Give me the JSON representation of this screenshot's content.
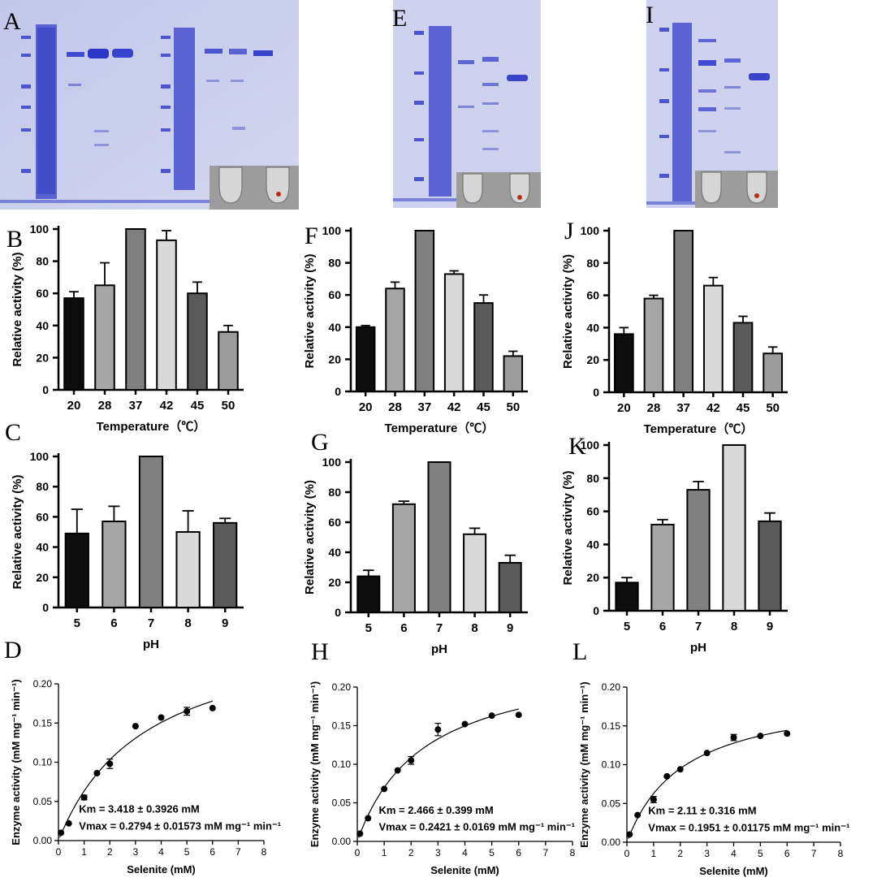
{
  "panels": {
    "A": "A",
    "B": "B",
    "C": "C",
    "D": "D",
    "E": "E",
    "F": "F",
    "G": "G",
    "H": "H",
    "I": "I",
    "J": "J",
    "K": "K",
    "L": "L"
  },
  "colors": {
    "gel_bg": "#c9cdeb",
    "band": "#3b45c8",
    "bar_fills_temp": [
      "#0d0d0d",
      "#a6a6a6",
      "#808080",
      "#d9d9d9",
      "#5a5a5a",
      "#9c9c9c"
    ],
    "bar_fills_ph": [
      "#0d0d0d",
      "#a6a6a6",
      "#808080",
      "#d9d9d9",
      "#5a5a5a"
    ]
  },
  "chart_data": [
    {
      "id": "B",
      "type": "bar",
      "categories": [
        "20",
        "28",
        "37",
        "42",
        "45",
        "50"
      ],
      "values": [
        57,
        65,
        100,
        93,
        60,
        36
      ],
      "errors": [
        4,
        14,
        0,
        6,
        7,
        4
      ],
      "ylabel": "Relative activity (%)",
      "xlabel": "Temperature（℃）",
      "ylim": [
        0,
        100
      ],
      "yticks": [
        "0",
        "20",
        "40",
        "60",
        "80",
        "100"
      ]
    },
    {
      "id": "C",
      "type": "bar",
      "categories": [
        "5",
        "6",
        "7",
        "8",
        "9"
      ],
      "values": [
        49,
        57,
        100,
        50,
        56
      ],
      "errors": [
        16,
        10,
        0,
        14,
        3
      ],
      "ylabel": "Relative activity (%)",
      "xlabel": "pH",
      "ylim": [
        0,
        100
      ],
      "yticks": [
        "0",
        "20",
        "40",
        "60",
        "80",
        "100"
      ]
    },
    {
      "id": "D",
      "type": "scatter",
      "x": [
        0.1,
        0.4,
        1,
        1.5,
        2,
        3,
        4,
        5,
        6
      ],
      "y": [
        0.01,
        0.022,
        0.055,
        0.086,
        0.098,
        0.146,
        0.157,
        0.165,
        0.169
      ],
      "errors": [
        0,
        0,
        0.003,
        0,
        0.006,
        0,
        0,
        0.005,
        0
      ],
      "fit": {
        "model": "michaelis-menten",
        "Km": 3.418,
        "Vmax": 0.2794
      },
      "ylabel": "Enzyme activity (mM mg⁻¹ min⁻¹)",
      "xlabel": "Selenite (mM)",
      "xlim": [
        0,
        8
      ],
      "ylim": [
        0,
        0.2
      ],
      "xticks": [
        "0",
        "1",
        "2",
        "3",
        "4",
        "5",
        "6",
        "7",
        "8"
      ],
      "yticks": [
        "0.00",
        "0.05",
        "0.10",
        "0.15",
        "0.20"
      ],
      "annotation_km": "Km = 3.418 ± 0.3926 mM",
      "annotation_vmax": "Vmax = 0.2794 ± 0.01573 mM mg⁻¹ min⁻¹"
    },
    {
      "id": "F",
      "type": "bar",
      "categories": [
        "20",
        "28",
        "37",
        "42",
        "45",
        "50"
      ],
      "values": [
        40,
        64,
        100,
        73,
        55,
        22
      ],
      "errors": [
        1,
        4,
        0,
        2,
        5,
        3
      ],
      "ylabel": "Relative activity (%)",
      "xlabel": "Temperature（℃）",
      "ylim": [
        0,
        100
      ],
      "yticks": [
        "0",
        "20",
        "40",
        "60",
        "80",
        "100"
      ]
    },
    {
      "id": "G",
      "type": "bar",
      "categories": [
        "5",
        "6",
        "7",
        "8",
        "9"
      ],
      "values": [
        24,
        72,
        100,
        52,
        33
      ],
      "errors": [
        4,
        2,
        0,
        4,
        5
      ],
      "ylabel": "Relative activity (%)",
      "xlabel": "pH",
      "ylim": [
        0,
        100
      ],
      "yticks": [
        "0",
        "20",
        "40",
        "60",
        "80",
        "100"
      ]
    },
    {
      "id": "H",
      "type": "scatter",
      "x": [
        0.1,
        0.4,
        1,
        1.5,
        2,
        3,
        4,
        5,
        6
      ],
      "y": [
        0.01,
        0.03,
        0.068,
        0.092,
        0.105,
        0.145,
        0.152,
        0.163,
        0.164
      ],
      "errors": [
        0,
        0,
        0,
        0,
        0.005,
        0.008,
        0,
        0,
        0
      ],
      "fit": {
        "model": "michaelis-menten",
        "Km": 2.466,
        "Vmax": 0.2421
      },
      "ylabel": "Enzyme activity (mM mg⁻¹ min⁻¹)",
      "xlabel": "Selenite (mM)",
      "xlim": [
        0,
        8
      ],
      "ylim": [
        0,
        0.2
      ],
      "xticks": [
        "0",
        "1",
        "2",
        "3",
        "4",
        "5",
        "6",
        "7",
        "8"
      ],
      "yticks": [
        "0.00",
        "0.05",
        "0.10",
        "0.15",
        "0.20"
      ],
      "annotation_km": "Km = 2.466 ± 0.399 mM",
      "annotation_vmax": "Vmax = 0.2421 ± 0.0169 mM mg⁻¹ min⁻¹"
    },
    {
      "id": "J",
      "type": "bar",
      "categories": [
        "20",
        "28",
        "37",
        "42",
        "45",
        "50"
      ],
      "values": [
        36,
        58,
        100,
        66,
        43,
        24
      ],
      "errors": [
        4,
        2,
        0,
        5,
        4,
        4
      ],
      "ylabel": "Relative activity (%)",
      "xlabel": "Temperature（℃）",
      "ylim": [
        0,
        100
      ],
      "yticks": [
        "0",
        "20",
        "40",
        "60",
        "80",
        "100"
      ]
    },
    {
      "id": "K",
      "type": "bar",
      "categories": [
        "5",
        "6",
        "7",
        "8",
        "9"
      ],
      "values": [
        17,
        52,
        73,
        100,
        54
      ],
      "errors": [
        3,
        3,
        5,
        0,
        5
      ],
      "ylabel": "Relative activity (%)",
      "xlabel": "pH",
      "ylim": [
        0,
        100
      ],
      "yticks": [
        "0",
        "20",
        "40",
        "60",
        "80",
        "100"
      ]
    },
    {
      "id": "L",
      "type": "scatter",
      "x": [
        0.1,
        0.4,
        1,
        1.5,
        2,
        3,
        4,
        5,
        6
      ],
      "y": [
        0.01,
        0.035,
        0.055,
        0.085,
        0.094,
        0.115,
        0.135,
        0.137,
        0.14
      ],
      "errors": [
        0,
        0,
        0.004,
        0,
        0,
        0,
        0.004,
        0,
        0
      ],
      "fit": {
        "model": "michaelis-menten",
        "Km": 2.11,
        "Vmax": 0.1951
      },
      "ylabel": "Enzyme activity (mM mg⁻¹ min⁻¹)",
      "xlabel": "Selenite (mM)",
      "xlim": [
        0,
        8
      ],
      "ylim": [
        0,
        0.2
      ],
      "xticks": [
        "0",
        "1",
        "2",
        "3",
        "4",
        "5",
        "6",
        "7",
        "8"
      ],
      "yticks": [
        "0.00",
        "0.05",
        "0.10",
        "0.15",
        "0.20"
      ],
      "annotation_km": "Km = 2.11 ± 0.316 mM",
      "annotation_vmax": "Vmax = 0.1951 ± 0.01175 mM mg⁻¹ min⁻¹"
    }
  ]
}
